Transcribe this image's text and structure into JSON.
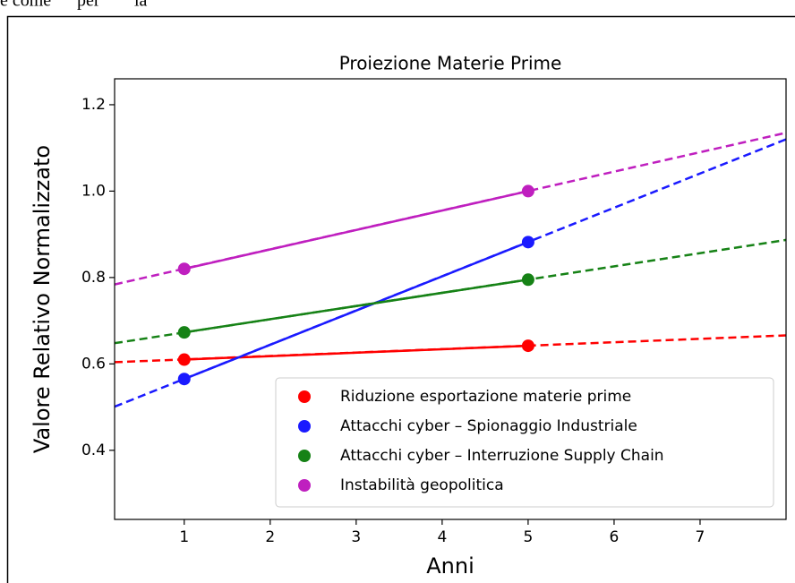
{
  "header_fragments": [
    "e come",
    "per",
    "la"
  ],
  "chart_data": {
    "type": "line",
    "title": "Proiezione Materie Prime",
    "x_label": "Anni",
    "y_label": "Valore Relativo Normalizzato",
    "x": [
      1,
      5
    ],
    "trend_x": [
      0.19,
      8.0
    ],
    "series": [
      {
        "name": "Riduzione esportazione materie prime",
        "color": "#ff0000",
        "values": [
          0.61,
          0.642
        ],
        "trend": [
          0.604,
          0.666
        ]
      },
      {
        "name": "Attacchi cyber – Spionaggio Industriale",
        "color": "#1a1aff",
        "values": [
          0.565,
          0.882
        ],
        "trend": [
          0.501,
          1.12
        ]
      },
      {
        "name": "Attacchi cyber – Interruzione Supply Chain",
        "color": "#168216",
        "values": [
          0.673,
          0.795
        ],
        "trend": [
          0.648,
          0.887
        ]
      },
      {
        "name": "Instabilità geopolitica",
        "color": "#bf1fbf",
        "values": [
          0.82,
          1.0
        ],
        "trend": [
          0.784,
          1.135
        ]
      }
    ],
    "xlim": [
      0.19,
      8.0
    ],
    "ylim": [
      0.24,
      1.26
    ],
    "xticks": [
      1,
      2,
      3,
      4,
      5,
      6,
      7
    ],
    "yticks": [
      0.4,
      0.6,
      0.8,
      {
        "value": 1,
        "label": "1.0"
      },
      1.2
    ],
    "legend": "lower right",
    "grid": false
  }
}
